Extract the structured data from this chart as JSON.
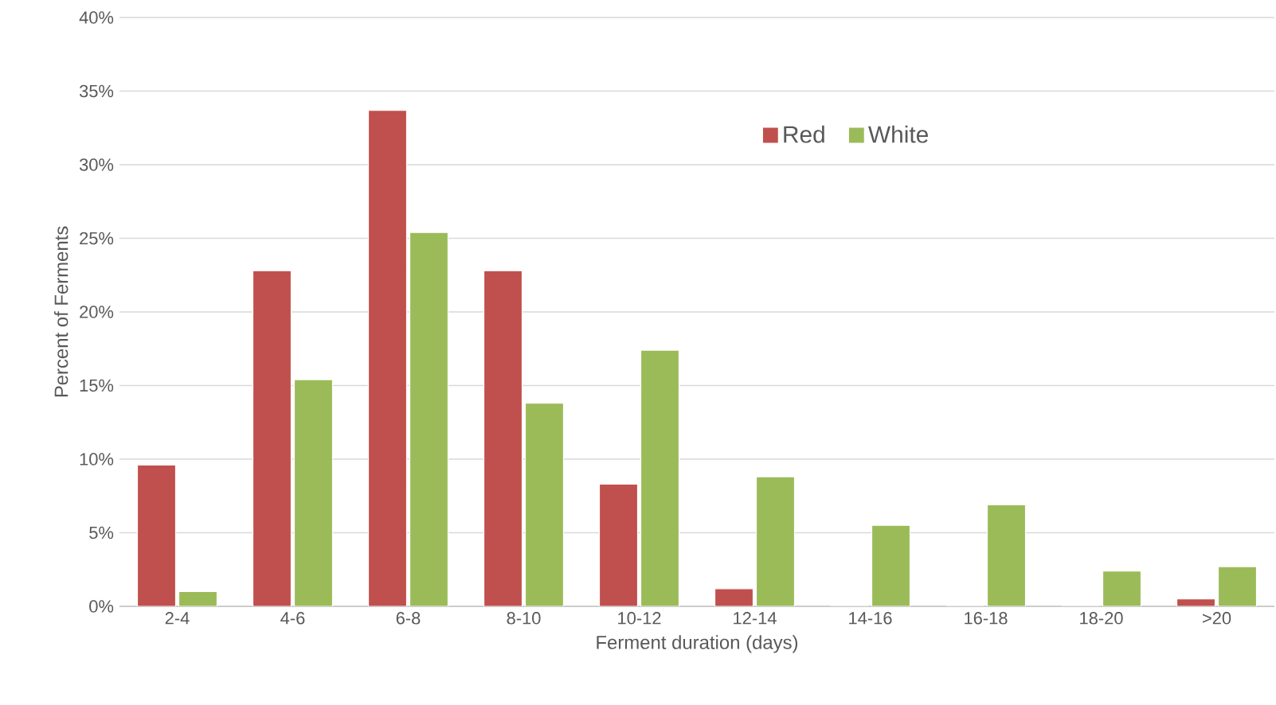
{
  "chart_data": {
    "type": "bar",
    "xlabel": "Ferment duration (days)",
    "ylabel": "Percent of Ferments",
    "categories": [
      "2-4",
      "4-6",
      "6-8",
      "8-10",
      "10-12",
      "12-14",
      "14-16",
      "16-18",
      "18-20",
      ">20"
    ],
    "series": [
      {
        "name": "Red",
        "color": "#c0504d",
        "values": [
          9.6,
          22.8,
          33.7,
          22.8,
          8.3,
          1.2,
          0,
          0,
          0,
          0.5
        ]
      },
      {
        "name": "White",
        "color": "#9bbb59",
        "values": [
          1.0,
          15.4,
          25.4,
          13.8,
          17.4,
          8.8,
          5.5,
          6.9,
          2.4,
          2.7
        ]
      }
    ],
    "ylim": [
      0,
      40
    ],
    "yticks": [
      {
        "value": 0,
        "label": "0%"
      },
      {
        "value": 5,
        "label": "5%"
      },
      {
        "value": 10,
        "label": "10%"
      },
      {
        "value": 15,
        "label": "15%"
      },
      {
        "value": 20,
        "label": "20%"
      },
      {
        "value": 25,
        "label": "25%"
      },
      {
        "value": 30,
        "label": "30%"
      },
      {
        "value": 35,
        "label": "35%"
      },
      {
        "value": 40,
        "label": "40%"
      }
    ],
    "grid": "y",
    "legend": "top"
  }
}
